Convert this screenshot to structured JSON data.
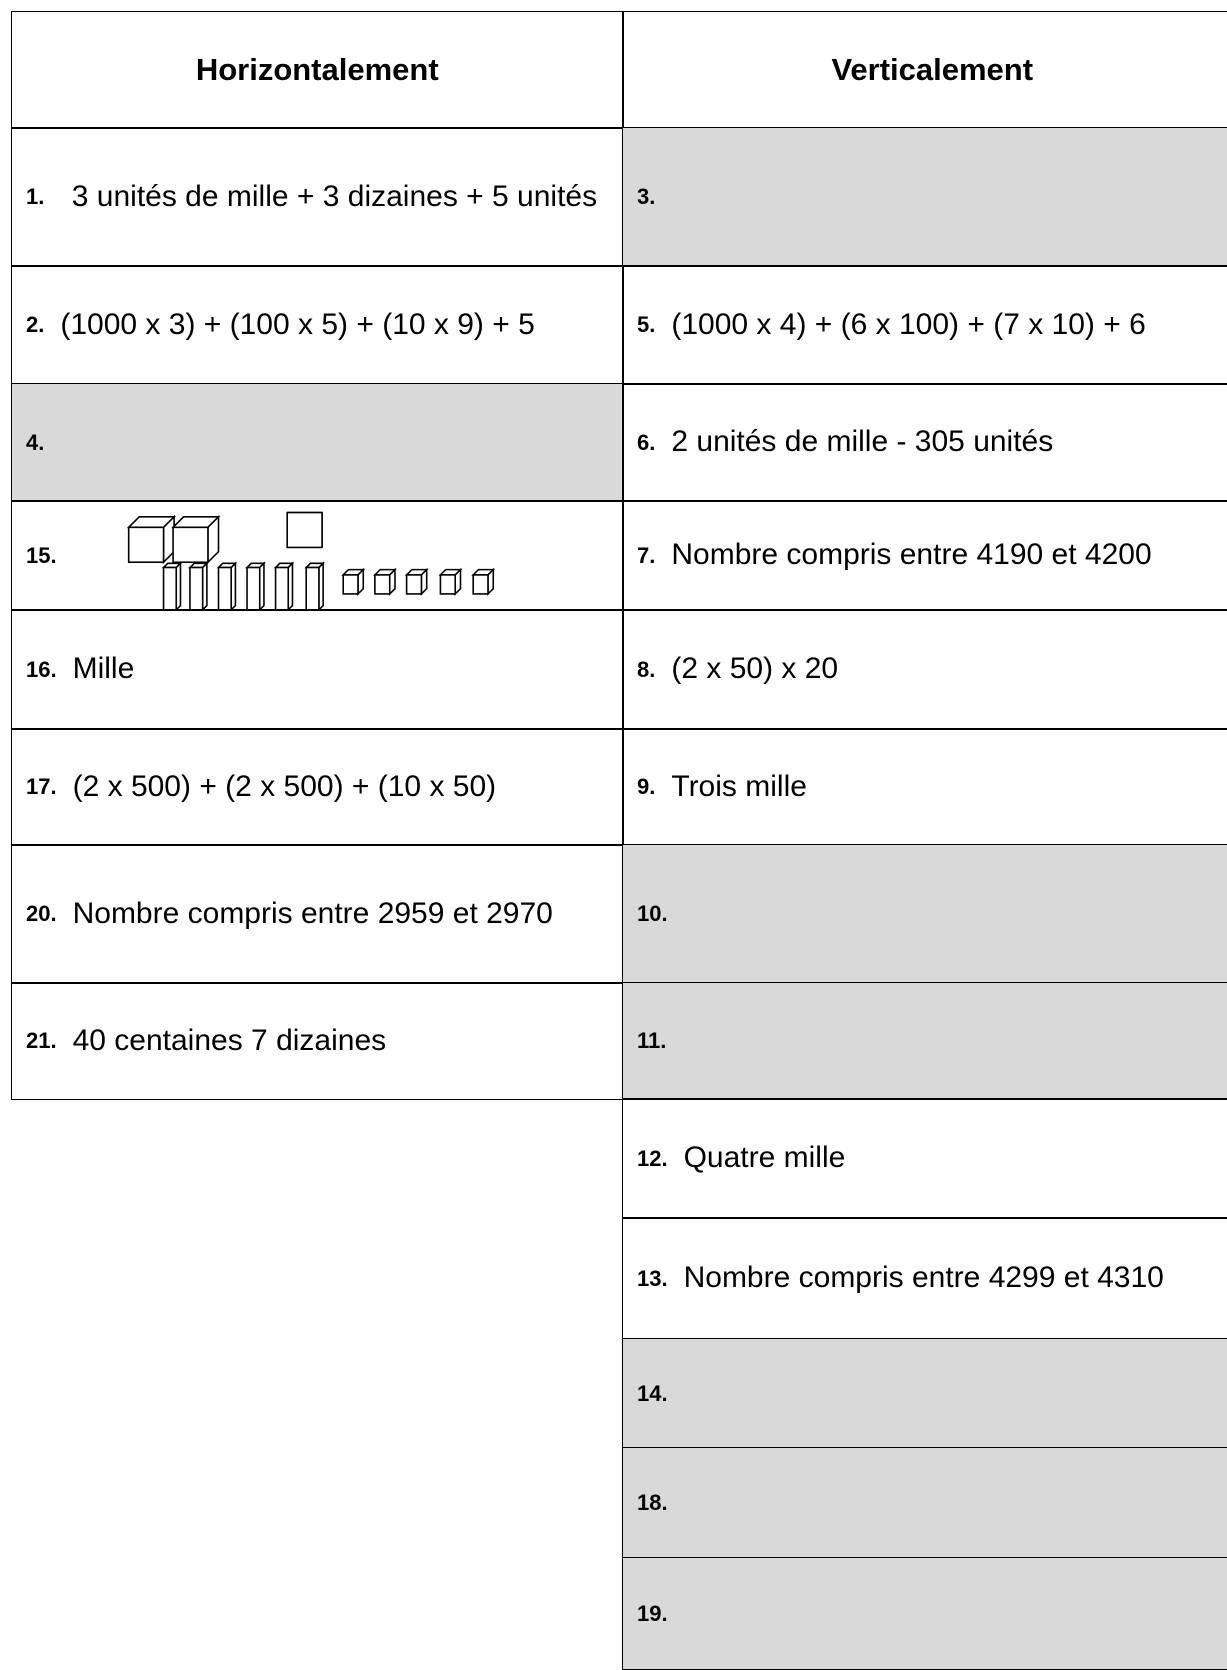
{
  "header": {
    "left": "Horizontalement",
    "right": "Verticalement"
  },
  "left": [
    {
      "number": "1.",
      "text": "3 unités de mille + 3 dizaines + 5 unités"
    },
    {
      "number": "2.",
      "text": "(1000 x 3) + (100 x 5) + (10 x 9) + 5"
    },
    {
      "number": "4."
    },
    {
      "number": "15."
    },
    {
      "number": "16.",
      "text": "Mille"
    },
    {
      "number": "17.",
      "text": "(2 x 500) + (2 x 500) +  (10 x 50)"
    },
    {
      "number": "20.",
      "text": "Nombre compris entre 2959 et 2970"
    },
    {
      "number": "21.",
      "text": "40 centaines  7 dizaines"
    }
  ],
  "right": [
    {
      "number": "3."
    },
    {
      "number": "5.",
      "text": "(1000 x 4) + (6 x 100) + (7 x 10) + 6"
    },
    {
      "number": "6.",
      "text": "2 unités de mille -  305 unités"
    },
    {
      "number": "7.",
      "text": "Nombre compris entre 4190 et 4200"
    },
    {
      "number": "8.",
      "text": "(2 x 50) x 20"
    },
    {
      "number": "9.",
      "text": "Trois mille"
    },
    {
      "number": "10."
    },
    {
      "number": "11."
    },
    {
      "number": "12.",
      "text": "Quatre mille"
    },
    {
      "number": "13.",
      "text": "Nombre compris entre 4299 et 4310"
    },
    {
      "number": "14."
    },
    {
      "number": "18."
    },
    {
      "number": "19."
    }
  ]
}
